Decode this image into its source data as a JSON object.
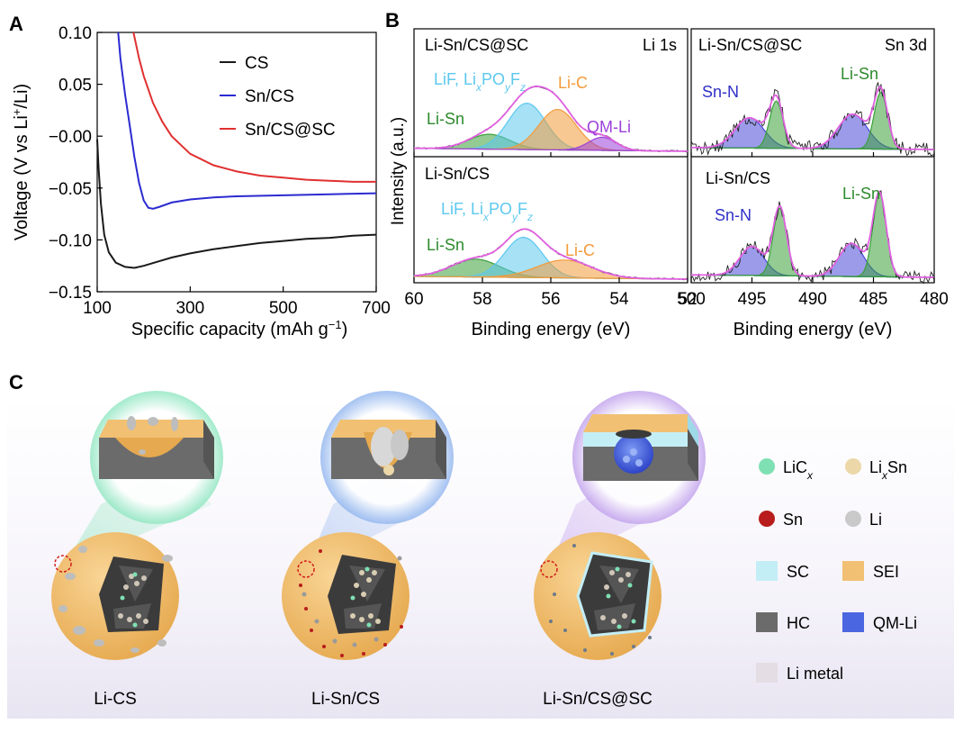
{
  "panels": {
    "a": "A",
    "b": "B",
    "c": "C"
  },
  "chart_data": [
    {
      "type": "line",
      "title": "",
      "xlabel": "Specific capacity (mAh g",
      "xlabel_sup": "−1",
      "xlabel_end": ")",
      "ylabel_pre": "Voltage (V vs Li",
      "ylabel_sup": "+",
      "ylabel_post": "/Li)",
      "xlim": [
        100,
        700
      ],
      "ylim": [
        -0.15,
        0.1
      ],
      "xticks": [
        100,
        300,
        500,
        700
      ],
      "xtick_labels": [
        "100",
        "300",
        "500",
        "700"
      ],
      "yticks": [
        -0.15,
        -0.1,
        -0.05,
        0.0,
        0.05,
        0.1
      ],
      "ytick_labels": [
        "−0.15",
        "−0.10",
        "−0.05",
        "−0.00",
        "0.05",
        "0.10"
      ],
      "legend": {
        "position": "top-right"
      },
      "series": [
        {
          "name": "CS",
          "color": "#1a1a1a",
          "x": [
            100,
            103,
            108,
            115,
            125,
            140,
            160,
            180,
            200,
            230,
            260,
            300,
            350,
            400,
            450,
            500,
            550,
            600,
            650,
            700
          ],
          "y": [
            -0.003,
            -0.03,
            -0.065,
            -0.095,
            -0.112,
            -0.122,
            -0.126,
            -0.127,
            -0.125,
            -0.121,
            -0.117,
            -0.113,
            -0.109,
            -0.106,
            -0.103,
            -0.101,
            -0.099,
            -0.098,
            -0.096,
            -0.095
          ]
        },
        {
          "name": "Sn/CS",
          "color": "#2b2bd1",
          "x": [
            145,
            150,
            160,
            170,
            180,
            190,
            200,
            210,
            220,
            235,
            260,
            300,
            350,
            400,
            500,
            600,
            700
          ],
          "y": [
            0.1,
            0.075,
            0.04,
            0.01,
            -0.02,
            -0.045,
            -0.062,
            -0.069,
            -0.07,
            -0.068,
            -0.064,
            -0.061,
            -0.059,
            -0.058,
            -0.057,
            -0.056,
            -0.055
          ]
        },
        {
          "name": "Sn/CS@SC",
          "color": "#e03030",
          "x": [
            178,
            190,
            200,
            220,
            240,
            260,
            300,
            350,
            400,
            450,
            500,
            550,
            600,
            650,
            700
          ],
          "y": [
            0.1,
            0.075,
            0.058,
            0.032,
            0.014,
            0.0,
            -0.017,
            -0.028,
            -0.034,
            -0.038,
            -0.04,
            -0.042,
            -0.043,
            -0.044,
            -0.044
          ]
        }
      ]
    },
    {
      "type": "line",
      "title": "Li 1s",
      "xlabel": "Binding energy (eV)",
      "ylabel": "Intensity (a.u.)",
      "xlim": [
        60,
        52
      ],
      "xticks": [
        60,
        58,
        56,
        54,
        52
      ],
      "xtick_labels": [
        "60",
        "58",
        "56",
        "54",
        "52"
      ],
      "subplots": [
        {
          "sample": "Li-Sn/CS@SC",
          "peaks": [
            {
              "name": "Li-Sn",
              "center": 57.8,
              "height": 0.25,
              "sigma": 0.6,
              "color": "#3aa03a"
            },
            {
              "name": "LiF, LixPOyFz",
              "center": 56.7,
              "height": 0.78,
              "sigma": 0.55,
              "color": "#5cc8ee"
            },
            {
              "name": "Li-C",
              "center": 55.8,
              "height": 0.68,
              "sigma": 0.55,
              "color": "#f39a3a"
            },
            {
              "name": "QM-Li",
              "center": 54.5,
              "height": 0.22,
              "sigma": 0.4,
              "color": "#9a40d8"
            }
          ]
        },
        {
          "sample": "Li-Sn/CS",
          "peaks": [
            {
              "name": "Li-Sn",
              "center": 58.2,
              "height": 0.32,
              "sigma": 0.7,
              "color": "#3aa03a"
            },
            {
              "name": "LiF, LixPOyFz",
              "center": 56.8,
              "height": 0.72,
              "sigma": 0.55,
              "color": "#5cc8ee"
            },
            {
              "name": "Li-C",
              "center": 55.6,
              "height": 0.32,
              "sigma": 0.8,
              "color": "#f39a3a"
            }
          ]
        }
      ]
    },
    {
      "type": "line",
      "title": "Sn 3d",
      "xlabel": "Binding energy (eV)",
      "xlim": [
        500,
        480
      ],
      "xticks": [
        500,
        495,
        490,
        485,
        480
      ],
      "xtick_labels": [
        "500",
        "495",
        "490",
        "485",
        "480"
      ],
      "subplots": [
        {
          "sample": "Li-Sn/CS@SC",
          "peaks": [
            {
              "name": "Sn-N",
              "center": 495.2,
              "height": 0.48,
              "sigma": 1.2,
              "color": "#4848d8"
            },
            {
              "name": "Li-Sn",
              "center": 493.0,
              "height": 0.75,
              "sigma": 0.55,
              "color": "#3aa03a"
            },
            {
              "name": "Sn-N",
              "center": 486.7,
              "height": 0.55,
              "sigma": 1.2,
              "color": "#4848d8"
            },
            {
              "name": "Li-Sn",
              "center": 484.4,
              "height": 0.9,
              "sigma": 0.55,
              "color": "#3aa03a"
            }
          ]
        },
        {
          "sample": "Li-Sn/CS",
          "peaks": [
            {
              "name": "Sn-N",
              "center": 495.0,
              "height": 0.35,
              "sigma": 1.0,
              "color": "#4848d8"
            },
            {
              "name": "Li-Sn",
              "center": 492.7,
              "height": 0.82,
              "sigma": 0.55,
              "color": "#3aa03a"
            },
            {
              "name": "Sn-N",
              "center": 486.8,
              "height": 0.4,
              "sigma": 1.0,
              "color": "#4848d8"
            },
            {
              "name": "Li-Sn",
              "center": 484.5,
              "height": 1.0,
              "sigma": 0.55,
              "color": "#3aa03a"
            }
          ]
        }
      ]
    }
  ],
  "xps": {
    "li1s_top_title": "Li-Sn/CS@SC",
    "li1s_core": "Li 1s",
    "li1s_top_labels": {
      "lisn": "Li-Sn",
      "lic": "Li-C",
      "qm": "QM-Li"
    },
    "li1s_bot_title": "Li-Sn/CS",
    "li1s_bot_labels": {
      "lisn": "Li-Sn",
      "lic": "Li-C"
    },
    "lif_text": {
      "a": "LiF, Li",
      "x": "x",
      "b": "PO",
      "y": "y",
      "c": "F",
      "z": "z"
    },
    "sn3d_top_title": "Li-Sn/CS@SC",
    "sn3d_core": "Sn 3d",
    "sn3d_bot_title": "Li-Sn/CS",
    "sn3d_labels": {
      "snn": "Sn-N",
      "lisn": "Li-Sn"
    }
  },
  "schematic": {
    "labels": [
      "Li-CS",
      "Li-Sn/CS",
      "Li-Sn/CS@SC"
    ],
    "legend": [
      {
        "text": "LiC",
        "sub": "x",
        "color": "#7fe0b4"
      },
      {
        "text": "Li",
        "sub": "x",
        "after": "Sn",
        "color": "#ecd7a8"
      },
      {
        "text": "Sn",
        "color": "#b81c1c"
      },
      {
        "text": "Li",
        "color": "#c9c9c9"
      },
      {
        "text": "SC",
        "color": "#c4eef6"
      },
      {
        "text": "SEI",
        "color": "#f1c073"
      },
      {
        "text": "HC",
        "color": "#6b6b6b"
      },
      {
        "text": "QM-Li",
        "color": "#4a66e0"
      },
      {
        "text": "Li metal",
        "color": "#e4dde4"
      }
    ]
  }
}
